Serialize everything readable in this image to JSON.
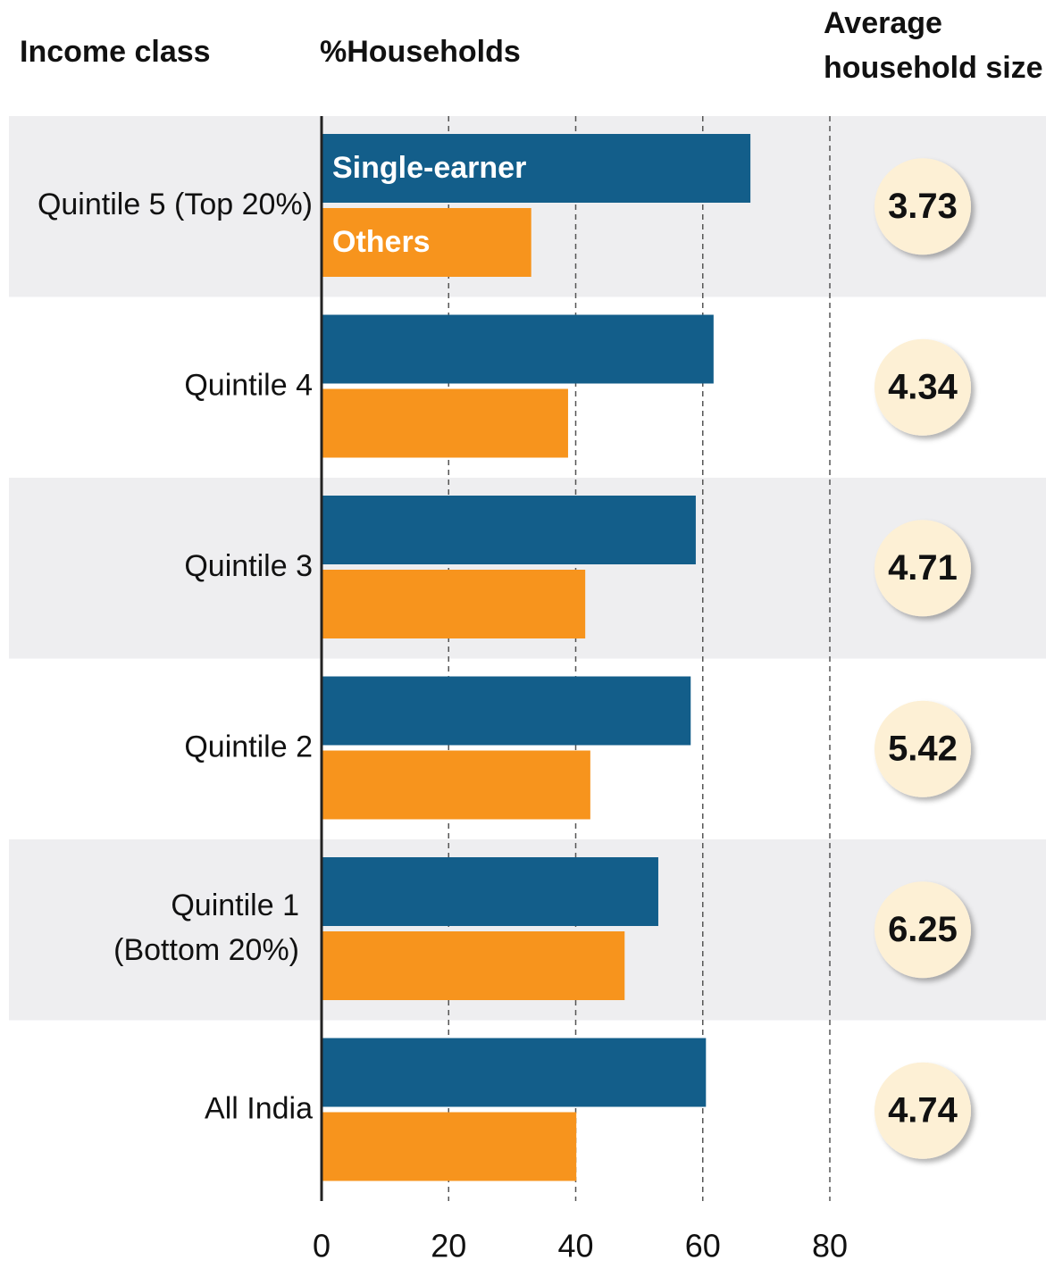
{
  "chart_data": {
    "type": "grouped-hbar",
    "header": {
      "category_title": "Income class",
      "value_title": "%Households"
    },
    "categories": [
      [
        "Quintile 5 (Top 20%)"
      ],
      [
        "Quintile 4"
      ],
      [
        "Quintile 3"
      ],
      [
        "Quintile 2"
      ],
      [
        "Quintile 1",
        "(Bottom 20%)"
      ],
      [
        "All India"
      ]
    ],
    "series": [
      {
        "name": "Single-earner",
        "color": "#135e8a",
        "values": [
          67.5,
          61.7,
          58.9,
          58.1,
          53,
          60.5
        ]
      },
      {
        "name": "Others",
        "color": "#f7941d",
        "values": [
          33,
          38.8,
          41.5,
          42.3,
          47.7,
          40.1
        ]
      }
    ],
    "xlim": [
      0,
      80
    ],
    "xticks": [
      0,
      20,
      40,
      60,
      80
    ],
    "grid": true,
    "household_size": {
      "title": [
        "Average",
        "household size"
      ],
      "values": [
        3.73,
        4.34,
        4.71,
        5.42,
        6.25,
        4.74
      ],
      "color": "#fdf0d5"
    }
  }
}
